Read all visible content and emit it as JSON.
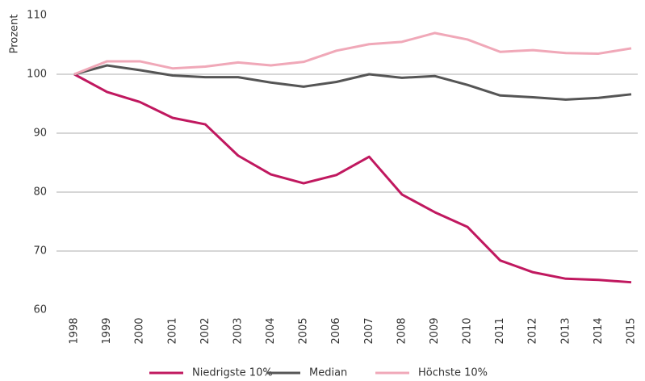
{
  "chart_data": {
    "type": "line",
    "y_label": "Prozent",
    "x": [
      "1998",
      "1999",
      "2000",
      "2001",
      "2002",
      "2003",
      "2004",
      "2005",
      "2006",
      "2007",
      "2008",
      "2009",
      "2010",
      "2011",
      "2012",
      "2013",
      "2014",
      "2015"
    ],
    "series": [
      {
        "name": "Niedrigste 10%",
        "color": "#c0185f",
        "values": [
          100,
          97.0,
          95.3,
          92.6,
          91.5,
          86.2,
          83.0,
          81.5,
          82.9,
          86.0,
          79.6,
          76.6,
          74.1,
          68.4,
          66.4,
          65.3,
          65.1,
          64.7
        ]
      },
      {
        "name": "Median",
        "color": "#555555",
        "values": [
          100,
          101.5,
          100.7,
          99.8,
          99.5,
          99.5,
          98.6,
          97.9,
          98.7,
          100.0,
          99.4,
          99.7,
          98.2,
          96.4,
          96.1,
          95.7,
          96.0,
          96.6
        ]
      },
      {
        "name": "Höchste 10%",
        "color": "#f0a8b8",
        "values": [
          100,
          102.2,
          102.2,
          101.0,
          101.3,
          102.0,
          101.5,
          102.1,
          104.0,
          105.1,
          105.5,
          107.0,
          105.9,
          103.8,
          104.1,
          103.6,
          103.5,
          104.4
        ]
      }
    ],
    "ylim": [
      60,
      110
    ],
    "yticks": [
      60,
      70,
      80,
      90,
      100,
      110
    ],
    "grid": true,
    "legend": "bottom"
  }
}
